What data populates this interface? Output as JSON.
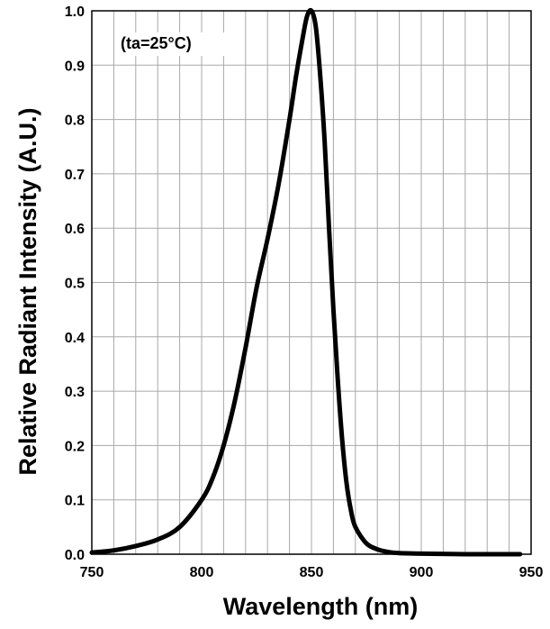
{
  "chart_data": {
    "type": "line",
    "title": "",
    "xlabel": "Wavelength (nm)",
    "ylabel": "Relative Radiant Intensity (A.U.)",
    "annotation": "(ta=25°C)",
    "xlim": [
      750,
      950
    ],
    "ylim": [
      0.0,
      1.0
    ],
    "x_ticks": [
      "750",
      "800",
      "850",
      "900",
      "950"
    ],
    "y_ticks": [
      "0.0",
      "0.1",
      "0.2",
      "0.3",
      "0.4",
      "0.5",
      "0.6",
      "0.7",
      "0.8",
      "0.9",
      "1.0"
    ],
    "grid": true,
    "series": [
      {
        "x": [
          750,
          760,
          770,
          780,
          790,
          800,
          805,
          810,
          815,
          820,
          825,
          830,
          835,
          840,
          843,
          846,
          848,
          850,
          852,
          854,
          856,
          858,
          860,
          862,
          864,
          866,
          868,
          870,
          875,
          880,
          885,
          890,
          900,
          920,
          945
        ],
        "y": [
          0.003,
          0.007,
          0.015,
          0.027,
          0.05,
          0.1,
          0.14,
          0.2,
          0.28,
          0.38,
          0.49,
          0.58,
          0.68,
          0.8,
          0.88,
          0.95,
          0.99,
          1.0,
          0.97,
          0.88,
          0.76,
          0.6,
          0.45,
          0.32,
          0.21,
          0.13,
          0.08,
          0.05,
          0.02,
          0.009,
          0.004,
          0.002,
          0.001,
          0.0,
          0.0
        ]
      }
    ]
  }
}
